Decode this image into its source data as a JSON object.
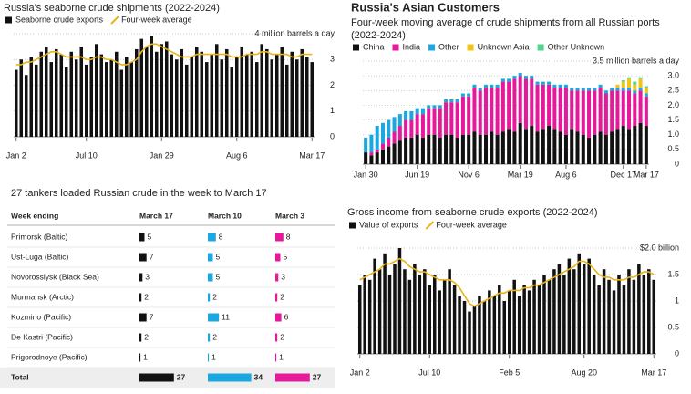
{
  "chart_data": [
    {
      "type": "bar",
      "title": "Russia's seaborne crude shipments (2022-2024)",
      "categories": [
        "Jan 2",
        null,
        null,
        null,
        null,
        null,
        null,
        null,
        null,
        null,
        null,
        null,
        null,
        null,
        "Jul 10",
        null,
        null,
        null,
        null,
        null,
        null,
        null,
        null,
        null,
        null,
        null,
        null,
        null,
        null,
        "Jan 29",
        null,
        null,
        null,
        null,
        null,
        null,
        null,
        null,
        null,
        null,
        null,
        null,
        null,
        null,
        "Aug 6",
        null,
        null,
        null,
        null,
        null,
        null,
        null,
        null,
        null,
        null,
        null,
        null,
        null,
        null,
        "Mar 17"
      ],
      "series": [
        {
          "name": "Seaborne crude exports",
          "color": "#111111",
          "values": [
            2.6,
            3.0,
            2.4,
            3.1,
            2.8,
            3.3,
            3.5,
            2.9,
            3.4,
            3.2,
            2.7,
            3.3,
            3.0,
            3.5,
            2.8,
            3.1,
            3.6,
            3.2,
            2.9,
            3.0,
            3.3,
            2.6,
            3.1,
            2.9,
            3.4,
            3.8,
            3.5,
            3.9,
            3.3,
            3.6,
            3.7,
            3.2,
            3.0,
            3.4,
            2.8,
            3.1,
            3.5,
            3.3,
            2.9,
            3.2,
            3.6,
            3.0,
            3.4,
            2.7,
            3.1,
            3.5,
            3.2,
            3.3,
            2.9,
            3.6,
            3.4,
            3.0,
            3.2,
            3.5,
            2.8,
            3.3,
            3.0,
            3.4,
            3.1,
            2.9
          ]
        },
        {
          "name": "Four-week average",
          "color": "#e8b31b",
          "type": "line",
          "values": [
            2.8,
            2.8,
            2.9,
            2.9,
            3.0,
            3.1,
            3.2,
            3.3,
            3.3,
            3.2,
            3.1,
            3.1,
            3.1,
            3.1,
            3.0,
            3.0,
            3.1,
            3.1,
            3.0,
            3.0,
            2.9,
            2.8,
            2.8,
            2.9,
            3.0,
            3.3,
            3.5,
            3.6,
            3.6,
            3.5,
            3.4,
            3.3,
            3.2,
            3.1,
            3.1,
            3.1,
            3.2,
            3.2,
            3.2,
            3.2,
            3.2,
            3.2,
            3.2,
            3.1,
            3.1,
            3.1,
            3.2,
            3.2,
            3.2,
            3.3,
            3.3,
            3.2,
            3.2,
            3.2,
            3.2,
            3.1,
            3.1,
            3.2,
            3.2,
            3.2
          ]
        }
      ],
      "ylim": [
        0,
        4
      ],
      "yticks": [
        0,
        1,
        2,
        3,
        {
          "value": 4,
          "label": "4 million barrels a day"
        }
      ],
      "grid": true
    },
    {
      "type": "stacked_bar",
      "title": "Russia's Asian Customers",
      "subtitle": "Four-week moving average of crude shipments from all Russian ports (2022-2024)",
      "categories": [
        "Jan 30",
        null,
        null,
        null,
        null,
        null,
        null,
        null,
        null,
        "Jun 19",
        null,
        null,
        null,
        null,
        null,
        null,
        null,
        null,
        "Nov 6",
        null,
        null,
        null,
        null,
        null,
        null,
        null,
        null,
        "Mar 19",
        null,
        null,
        null,
        null,
        null,
        null,
        null,
        "Aug 6",
        null,
        null,
        null,
        null,
        null,
        null,
        null,
        null,
        null,
        "Dec 17",
        null,
        null,
        null,
        "Mar 17"
      ],
      "series": [
        {
          "name": "China",
          "color": "#111111",
          "values": [
            0.4,
            0.3,
            0.4,
            0.5,
            0.6,
            0.7,
            0.8,
            0.9,
            0.9,
            1.0,
            0.9,
            1.0,
            1.0,
            0.9,
            1.0,
            1.0,
            0.9,
            1.0,
            1.0,
            1.1,
            1.0,
            1.0,
            1.1,
            1.0,
            1.1,
            1.2,
            1.1,
            1.4,
            1.2,
            1.3,
            1.1,
            1.2,
            1.3,
            1.2,
            1.1,
            1.0,
            1.2,
            1.1,
            1.0,
            0.9,
            1.0,
            1.1,
            1.0,
            1.1,
            1.2,
            1.3,
            1.2,
            1.3,
            1.4,
            1.3
          ]
        },
        {
          "name": "India",
          "color": "#e6199b",
          "values": [
            0,
            0.1,
            0.1,
            0.2,
            0.3,
            0.4,
            0.5,
            0.6,
            0.6,
            0.7,
            0.8,
            0.9,
            0.9,
            1.0,
            1.1,
            1.1,
            1.2,
            1.3,
            1.3,
            1.5,
            1.5,
            1.6,
            1.5,
            1.6,
            1.7,
            1.6,
            1.8,
            1.6,
            1.7,
            1.6,
            1.6,
            1.5,
            1.4,
            1.4,
            1.5,
            1.6,
            1.3,
            1.4,
            1.5,
            1.6,
            1.5,
            1.5,
            1.4,
            1.4,
            1.3,
            1.2,
            1.3,
            1.1,
            1.1,
            1.0
          ]
        },
        {
          "name": "Other",
          "color": "#1ba8e0",
          "values": [
            0.5,
            0.6,
            0.8,
            0.7,
            0.6,
            0.5,
            0.4,
            0.3,
            0.3,
            0.2,
            0.2,
            0.1,
            0.1,
            0.1,
            0.1,
            0.1,
            0.1,
            0.1,
            0.1,
            0.1,
            0.1,
            0.1,
            0.1,
            0.1,
            0.1,
            0.1,
            0.1,
            0.1,
            0.1,
            0.1,
            0.1,
            0.1,
            0.1,
            0.1,
            0.1,
            0.1,
            0.1,
            0.1,
            0.1,
            0.1,
            0.1,
            0.1,
            0.1,
            0.1,
            0.1,
            0.1,
            0.1,
            0.1,
            0.1,
            0.1
          ]
        },
        {
          "name": "Unknown Asia",
          "color": "#f0c419",
          "values": [
            0,
            0,
            0,
            0,
            0,
            0,
            0,
            0,
            0,
            0,
            0,
            0,
            0,
            0,
            0,
            0,
            0,
            0,
            0,
            0,
            0,
            0,
            0,
            0,
            0,
            0,
            0,
            0,
            0,
            0,
            0,
            0,
            0,
            0,
            0,
            0,
            0,
            0,
            0,
            0,
            0,
            0,
            0,
            0,
            0.1,
            0.2,
            0.3,
            0.2,
            0.3,
            0.2
          ]
        },
        {
          "name": "Other Unknown",
          "color": "#4fd68e",
          "values": [
            0,
            0,
            0,
            0,
            0,
            0,
            0,
            0,
            0,
            0,
            0,
            0,
            0,
            0,
            0,
            0,
            0,
            0,
            0,
            0,
            0,
            0,
            0,
            0,
            0,
            0,
            0,
            0,
            0,
            0,
            0,
            0,
            0,
            0,
            0,
            0,
            0,
            0,
            0,
            0,
            0,
            0,
            0,
            0,
            0,
            0.05,
            0.05,
            0.1,
            0.05,
            0.05
          ]
        }
      ],
      "ylim": [
        0,
        3.5
      ],
      "yticks": [
        0,
        0.5,
        {
          "value": 1,
          "label": "1.0"
        },
        1.5,
        {
          "value": 2,
          "label": "2.0"
        },
        2.5,
        {
          "value": 3,
          "label": "3.0"
        },
        {
          "value": 3.5,
          "label": "3.5 million barrels a day"
        }
      ],
      "grid": true
    },
    {
      "type": "bar",
      "title": "Gross income from seaborne crude exports (2022-2024)",
      "categories": [
        "Jan 2",
        null,
        null,
        null,
        null,
        null,
        null,
        null,
        null,
        null,
        null,
        null,
        null,
        null,
        "Jul 10",
        null,
        null,
        null,
        null,
        null,
        null,
        null,
        null,
        null,
        null,
        null,
        null,
        null,
        null,
        null,
        "Feb 5",
        null,
        null,
        null,
        null,
        null,
        null,
        null,
        null,
        null,
        null,
        null,
        null,
        null,
        null,
        "Aug 20",
        null,
        null,
        null,
        null,
        null,
        null,
        null,
        null,
        null,
        null,
        null,
        null,
        null,
        "Mar 17"
      ],
      "series": [
        {
          "name": "Value of exports",
          "color": "#111111",
          "values": [
            1.3,
            1.5,
            1.4,
            1.8,
            1.6,
            1.9,
            1.5,
            1.7,
            2.0,
            1.6,
            1.4,
            1.7,
            1.5,
            1.6,
            1.3,
            1.5,
            1.2,
            1.4,
            1.6,
            1.3,
            1.1,
            1.0,
            0.8,
            0.9,
            1.1,
            1.0,
            1.2,
            1.1,
            1.3,
            1.0,
            1.2,
            1.4,
            1.1,
            1.3,
            1.2,
            1.4,
            1.3,
            1.5,
            1.4,
            1.6,
            1.7,
            1.5,
            1.8,
            1.6,
            1.9,
            1.7,
            1.8,
            1.5,
            1.3,
            1.6,
            1.4,
            1.2,
            1.5,
            1.3,
            1.6,
            1.4,
            1.7,
            1.5,
            1.6,
            1.4
          ]
        },
        {
          "name": "Four-week average",
          "color": "#e8b31b",
          "type": "line",
          "values": [
            1.4,
            1.45,
            1.5,
            1.55,
            1.6,
            1.7,
            1.7,
            1.75,
            1.8,
            1.75,
            1.65,
            1.6,
            1.55,
            1.55,
            1.5,
            1.45,
            1.4,
            1.4,
            1.4,
            1.35,
            1.25,
            1.1,
            0.95,
            0.9,
            0.95,
            1.0,
            1.05,
            1.1,
            1.15,
            1.15,
            1.2,
            1.2,
            1.2,
            1.25,
            1.25,
            1.3,
            1.3,
            1.35,
            1.4,
            1.45,
            1.5,
            1.55,
            1.6,
            1.65,
            1.75,
            1.75,
            1.7,
            1.6,
            1.5,
            1.45,
            1.45,
            1.4,
            1.4,
            1.4,
            1.45,
            1.45,
            1.5,
            1.55,
            1.55,
            1.5
          ]
        }
      ],
      "ylim": [
        0,
        2
      ],
      "yticks": [
        0,
        0.5,
        1,
        1.5,
        {
          "value": 2,
          "label": "$2.0 billion"
        }
      ],
      "grid": true
    }
  ],
  "table": {
    "title": "27 tankers loaded Russian crude in the week to March 17",
    "header": [
      "Week ending",
      "March 17",
      "March 10",
      "March 3"
    ],
    "colors": [
      "#111111",
      "#1ba8e0",
      "#e6199b"
    ],
    "rows": [
      [
        "Primorsk (Baltic)",
        5,
        8,
        8
      ],
      [
        "Ust-Luga (Baltic)",
        7,
        5,
        5
      ],
      [
        "Novorossiysk (Black Sea)",
        3,
        5,
        3
      ],
      [
        "Murmansk (Arctic)",
        2,
        2,
        2
      ],
      [
        "Kozmino (Pacific)",
        7,
        11,
        6
      ],
      [
        "De Kastri (Pacific)",
        2,
        2,
        2
      ],
      [
        "Prigorodnoye (Pacific)",
        1,
        1,
        1
      ]
    ],
    "total": [
      "Total",
      27,
      34,
      27
    ]
  }
}
